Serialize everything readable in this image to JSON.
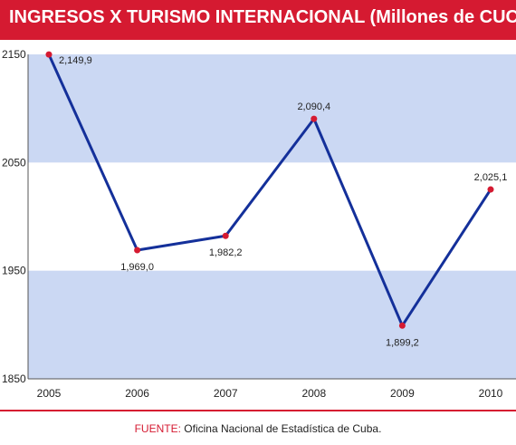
{
  "title": "INGRESOS X TURISMO INTERNACIONAL (Millones de CUC)",
  "footer": {
    "label": "FUENTE:",
    "text": "Oficina Nacional de Estadística de Cuba."
  },
  "colors": {
    "accent": "#d51a31",
    "line": "#14309a",
    "band": "#cbd8f3",
    "marker": "#d51a31"
  },
  "chart_data": {
    "type": "line",
    "categories": [
      "2005",
      "2006",
      "2007",
      "2008",
      "2009",
      "2010"
    ],
    "values": [
      2149.9,
      1969.0,
      1982.2,
      2090.4,
      1899.2,
      2025.1
    ],
    "data_labels": [
      "2,149,9",
      "1,969,0",
      "1,982,2",
      "2,090,4",
      "1,899,2",
      "2,025,1"
    ],
    "yticks": [
      1850,
      1950,
      2050,
      2150
    ],
    "ylim": [
      1850,
      2150
    ],
    "grid": "alternating horizontal bands",
    "title": "INGRESOS X TURISMO INTERNACIONAL (Millones de CUC)"
  }
}
